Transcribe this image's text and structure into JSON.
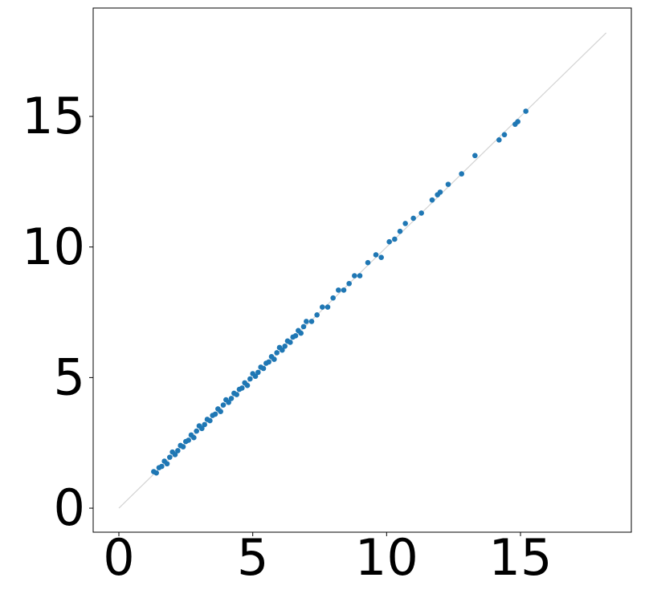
{
  "chart_data": {
    "type": "scatter",
    "x": [
      1.3,
      1.4,
      1.5,
      1.6,
      1.7,
      1.8,
      1.9,
      2.0,
      2.1,
      2.2,
      2.3,
      2.4,
      2.5,
      2.6,
      2.7,
      2.8,
      2.9,
      3.0,
      3.1,
      3.2,
      3.3,
      3.4,
      3.5,
      3.6,
      3.7,
      3.8,
      3.9,
      4.0,
      4.1,
      4.2,
      4.3,
      4.4,
      4.5,
      4.6,
      4.7,
      4.8,
      4.9,
      5.0,
      5.1,
      5.2,
      5.3,
      5.4,
      5.5,
      5.6,
      5.7,
      5.8,
      5.9,
      6.0,
      6.1,
      6.2,
      6.3,
      6.4,
      6.5,
      6.6,
      6.7,
      6.8,
      6.9,
      7.0,
      7.2,
      7.4,
      7.6,
      7.8,
      8.0,
      8.2,
      8.4,
      8.6,
      8.8,
      9.0,
      9.3,
      9.6,
      9.8,
      10.1,
      10.3,
      10.5,
      10.7,
      11.0,
      11.3,
      11.7,
      11.9,
      12.0,
      12.3,
      12.8,
      13.3,
      14.2,
      14.4,
      14.8,
      14.9,
      15.2
    ],
    "values": [
      1.4,
      1.35,
      1.55,
      1.6,
      1.8,
      1.7,
      1.95,
      2.15,
      2.05,
      2.2,
      2.4,
      2.35,
      2.55,
      2.6,
      2.8,
      2.7,
      2.95,
      3.15,
      3.05,
      3.2,
      3.4,
      3.35,
      3.55,
      3.6,
      3.8,
      3.7,
      3.95,
      4.15,
      4.05,
      4.2,
      4.4,
      4.35,
      4.55,
      4.6,
      4.8,
      4.7,
      4.95,
      5.15,
      5.05,
      5.2,
      5.4,
      5.35,
      5.55,
      5.6,
      5.8,
      5.7,
      5.95,
      6.15,
      6.05,
      6.2,
      6.4,
      6.35,
      6.55,
      6.6,
      6.8,
      6.7,
      6.95,
      7.15,
      7.15,
      7.4,
      7.7,
      7.7,
      8.05,
      8.35,
      8.35,
      8.6,
      8.9,
      8.9,
      9.4,
      9.7,
      9.6,
      10.2,
      10.3,
      10.6,
      10.9,
      11.1,
      11.3,
      11.8,
      12.0,
      12.1,
      12.4,
      12.8,
      13.5,
      14.1,
      14.3,
      14.7,
      14.8,
      15.2
    ],
    "color": "#1f77b4",
    "diagonal": {
      "x": [
        0,
        18.2
      ],
      "y": [
        0,
        18.2
      ],
      "color": "#d3d3d3"
    },
    "xlim": [
      -0.96,
      19.14
    ],
    "ylim": [
      -0.92,
      19.15
    ],
    "xticks": [
      0,
      5,
      10,
      15
    ],
    "yticks": [
      0,
      5,
      10,
      15
    ],
    "grid": false
  }
}
